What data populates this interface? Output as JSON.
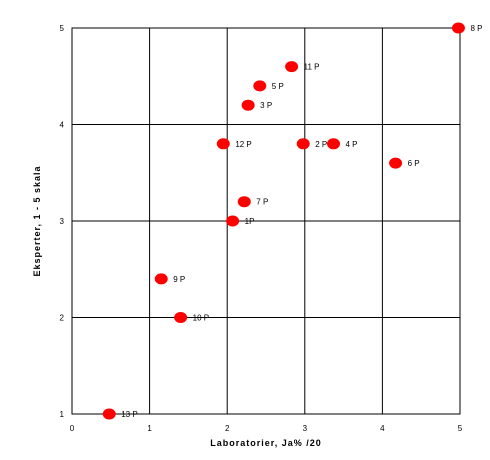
{
  "chart_data": {
    "type": "scatter",
    "title": "",
    "xlabel": "Laboratorier, Ja% /20",
    "ylabel": "Eksperter, 1 - 5 skala",
    "xlim": [
      0,
      5
    ],
    "ylim": [
      1,
      5
    ],
    "x_ticks": [
      "0",
      "1",
      "2",
      "3",
      "4",
      "5"
    ],
    "y_ticks": [
      "1",
      "2",
      "3",
      "4",
      "5"
    ],
    "grid": true,
    "marker_color": "#ff0000",
    "points": [
      {
        "label": "1P",
        "x": 2.07,
        "y": 3.0
      },
      {
        "label": "2 P",
        "x": 2.98,
        "y": 3.8
      },
      {
        "label": "3 P",
        "x": 2.27,
        "y": 4.2
      },
      {
        "label": "4 P",
        "x": 3.37,
        "y": 3.8
      },
      {
        "label": "5 P",
        "x": 2.42,
        "y": 4.4
      },
      {
        "label": "6 P",
        "x": 4.17,
        "y": 3.6
      },
      {
        "label": "7 P",
        "x": 2.22,
        "y": 3.2
      },
      {
        "label": "8 P",
        "x": 4.98,
        "y": 5.0
      },
      {
        "label": "9 P",
        "x": 1.15,
        "y": 2.4
      },
      {
        "label": "10 P",
        "x": 1.4,
        "y": 2.0
      },
      {
        "label": "11 P",
        "x": 2.83,
        "y": 4.6
      },
      {
        "label": "12 P",
        "x": 1.95,
        "y": 3.8
      },
      {
        "label": "13 P",
        "x": 0.48,
        "y": 1.0
      }
    ]
  }
}
